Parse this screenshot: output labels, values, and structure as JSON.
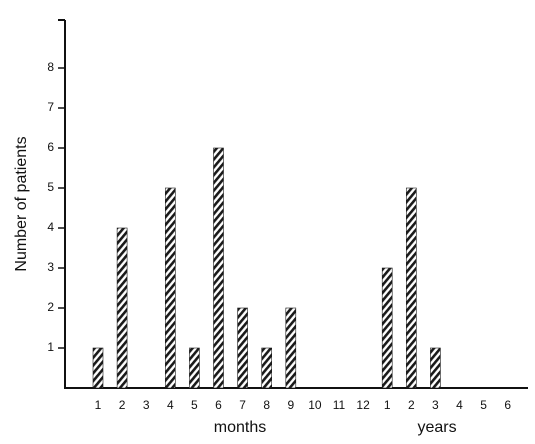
{
  "chart_data": {
    "type": "bar",
    "y_label": "Number of patients",
    "categories": [
      "1",
      "2",
      "3",
      "4",
      "5",
      "6",
      "7",
      "8",
      "9",
      "10",
      "11",
      "12",
      "1",
      "2",
      "3",
      "4",
      "5",
      "6"
    ],
    "values": [
      1,
      4,
      0,
      5,
      1,
      6,
      2,
      1,
      2,
      0,
      0,
      0,
      3,
      5,
      1,
      0,
      0,
      0
    ],
    "annotations": [
      "months",
      "years"
    ],
    "color": "#1a1a1a",
    "ylim": [
      0,
      9.2
    ],
    "yticks": [
      1,
      2,
      3,
      4,
      5,
      6,
      7,
      8
    ],
    "grid": false
  }
}
